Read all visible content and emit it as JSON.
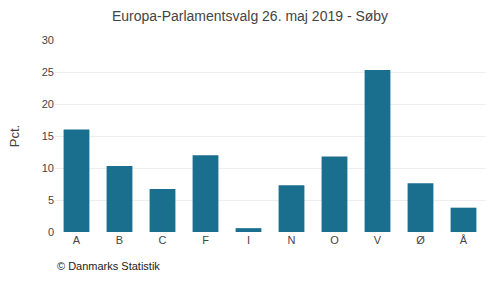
{
  "chart_data": {
    "type": "bar",
    "title": "Europa-Parlamentsvalg 26. maj 2019 - Søby",
    "categories": [
      "A",
      "B",
      "C",
      "F",
      "I",
      "N",
      "O",
      "V",
      "Ø",
      "Å"
    ],
    "values": [
      16.0,
      10.3,
      6.7,
      12.0,
      0.6,
      7.3,
      11.8,
      25.3,
      7.6,
      3.8
    ],
    "color": "#1a6e8e",
    "ylabel": "Pct.",
    "annotations": [
      "© Danmarks Statistik"
    ],
    "ylim": [
      0,
      30
    ],
    "yticks": [
      0,
      5,
      10,
      15,
      20,
      25,
      30
    ],
    "grid": true
  }
}
